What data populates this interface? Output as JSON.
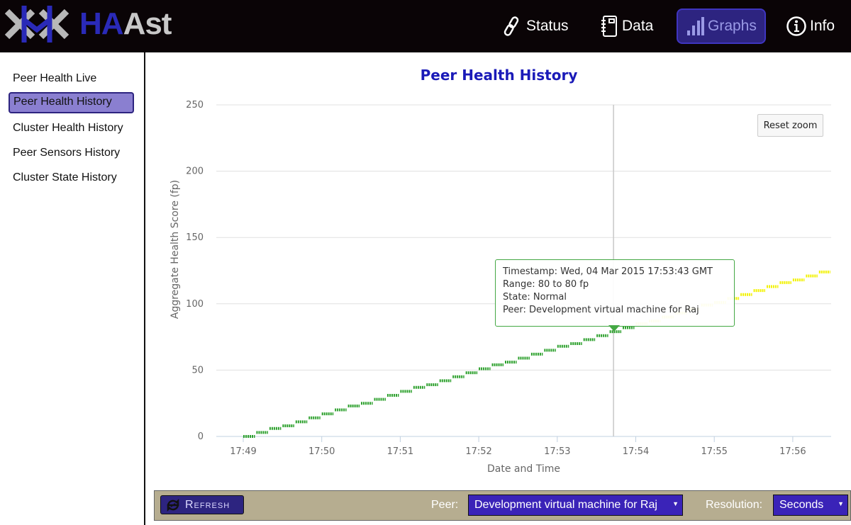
{
  "header": {
    "logo_text": "HAAst",
    "logo_parts": [
      "HA",
      "Ast"
    ],
    "nav": [
      {
        "label": "Status",
        "icon": "link-icon"
      },
      {
        "label": "Data",
        "icon": "notebook-icon"
      },
      {
        "label": "Graphs",
        "icon": "bar-chart-icon",
        "active": true
      },
      {
        "label": "Info",
        "icon": "info-icon"
      }
    ]
  },
  "sidebar": {
    "items": [
      {
        "label": "Peer Health Live"
      },
      {
        "label": "Peer Health History",
        "active": true
      },
      {
        "label": "Cluster Health History"
      },
      {
        "label": "Peer Sensors History"
      },
      {
        "label": "Cluster State History"
      }
    ]
  },
  "reset_zoom": "Reset zoom",
  "tooltip": {
    "line1": "Timestamp: Wed, 04 Mar 2015 17:53:43 GMT",
    "line2": "Range: 80 to 80 fp",
    "line3": "State: Normal",
    "line4": "Peer: Development virtual machine for Raj"
  },
  "controls": {
    "refresh": "Refresh",
    "peer_label": "Peer:",
    "peer_value": "Development virtual machine for Raj",
    "resolution_label": "Resolution:",
    "resolution_value": "Seconds"
  },
  "colors": {
    "normal": "#2ca02c",
    "warning": "#f2f200",
    "accent": "#2d2480",
    "title": "#1a1ab8"
  },
  "chart_data": {
    "type": "line",
    "title": "Peer Health History",
    "xlabel": "Date and Time",
    "ylabel": "Aggregate Health Score (fp)",
    "ylim": [
      0,
      250
    ],
    "yticks": [
      0,
      50,
      100,
      150,
      200,
      250
    ],
    "xticks": [
      "17:49",
      "17:50",
      "17:51",
      "17:52",
      "17:53",
      "17:54",
      "17:55",
      "17:56"
    ],
    "grid": true,
    "crosshair_x": "17:53:43",
    "series": [
      {
        "x": [
          "17:49:00",
          "17:49:10",
          "17:49:20",
          "17:49:30",
          "17:49:40",
          "17:49:50",
          "17:50:00",
          "17:50:10",
          "17:50:20",
          "17:50:30",
          "17:50:40",
          "17:50:50",
          "17:51:00",
          "17:51:10",
          "17:51:20",
          "17:51:30",
          "17:51:40",
          "17:51:50",
          "17:52:00",
          "17:52:10",
          "17:52:20",
          "17:52:30",
          "17:52:40",
          "17:52:50",
          "17:53:00",
          "17:53:10",
          "17:53:20",
          "17:53:30",
          "17:53:40",
          "17:53:50",
          "17:54:00",
          "17:54:10",
          "17:54:20",
          "17:54:30",
          "17:54:40",
          "17:54:50",
          "17:55:00",
          "17:55:10",
          "17:55:20",
          "17:55:30",
          "17:55:40",
          "17:55:50",
          "17:56:00",
          "17:56:10",
          "17:56:20"
        ],
        "y": [
          0,
          3,
          6,
          8,
          11,
          14,
          17,
          20,
          23,
          25,
          28,
          31,
          34,
          37,
          39,
          42,
          45,
          48,
          51,
          54,
          56,
          59,
          62,
          65,
          68,
          70,
          73,
          76,
          79,
          82,
          85,
          87,
          90,
          93,
          96,
          99,
          101,
          104,
          107,
          110,
          113,
          116,
          118,
          121,
          124
        ],
        "state": [
          "Normal",
          "Normal",
          "Normal",
          "Normal",
          "Normal",
          "Normal",
          "Normal",
          "Normal",
          "Normal",
          "Normal",
          "Normal",
          "Normal",
          "Normal",
          "Normal",
          "Normal",
          "Normal",
          "Normal",
          "Normal",
          "Normal",
          "Normal",
          "Normal",
          "Normal",
          "Normal",
          "Normal",
          "Normal",
          "Normal",
          "Normal",
          "Normal",
          "Normal",
          "Normal",
          "Warning",
          "Warning",
          "Warning",
          "Warning",
          "Warning",
          "Warning",
          "Warning",
          "Warning",
          "Warning",
          "Warning",
          "Warning",
          "Warning",
          "Warning",
          "Warning",
          "Warning"
        ]
      }
    ]
  }
}
